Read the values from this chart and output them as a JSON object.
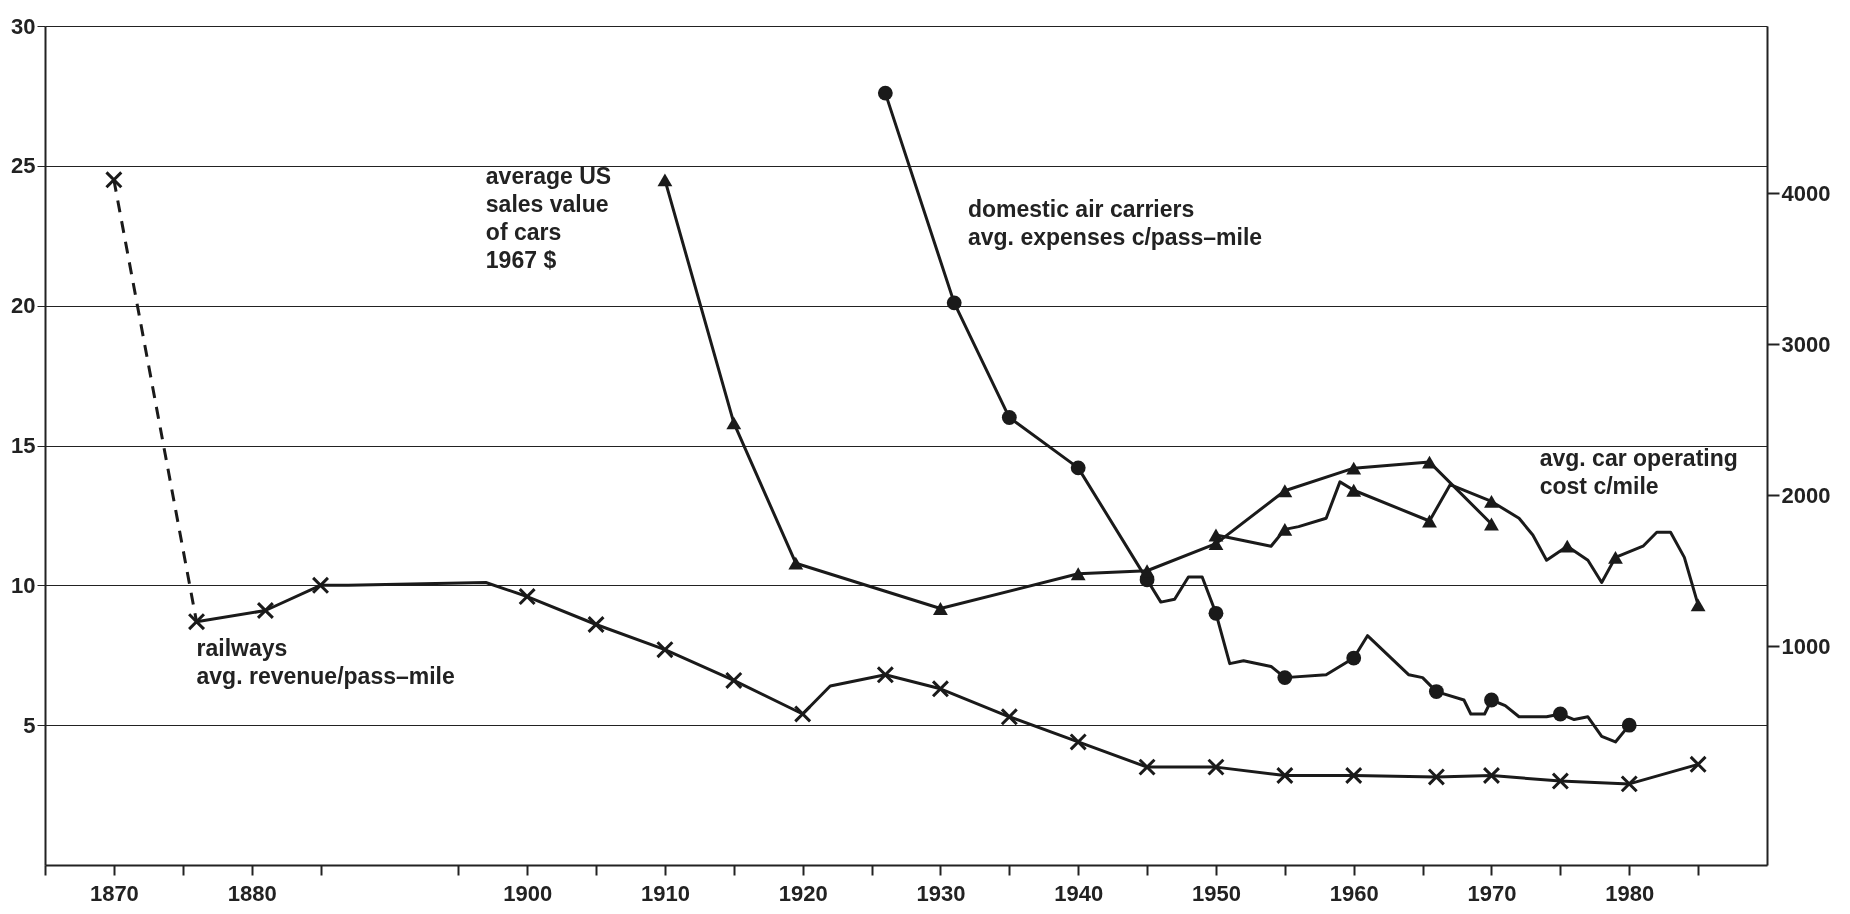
{
  "chart_data": {
    "type": "line",
    "xlim": [
      1865,
      1990
    ],
    "xticks": [
      {
        "value": 1865,
        "label": null
      },
      1870,
      {
        "value": 1875,
        "label": null
      },
      1880,
      {
        "value": 1885,
        "label": null
      },
      {
        "value": 1895,
        "label": null
      },
      1900,
      {
        "value": 1905,
        "label": null
      },
      1910,
      {
        "value": 1915,
        "label": null
      },
      1920,
      {
        "value": 1925,
        "label": null
      },
      1930,
      {
        "value": 1935,
        "label": null
      },
      1940,
      {
        "value": 1945,
        "label": null
      },
      1950,
      {
        "value": 1955,
        "label": null
      },
      1960,
      {
        "value": 1965,
        "label": null
      },
      1970,
      {
        "value": 1975,
        "label": null
      },
      1980,
      {
        "value": 1985,
        "label": null
      }
    ],
    "ylim": [
      0,
      30
    ],
    "yticks": [
      5,
      10,
      15,
      20,
      25,
      30
    ],
    "y2lim": [
      -450,
      5110
    ],
    "y2ticks": [
      1000,
      2000,
      3000,
      4000
    ],
    "grid": "y",
    "series": [
      {
        "color": "#1a1a1a",
        "line_style": "dashed",
        "marker": "none",
        "x": [
          1870,
          1876
        ],
        "values": [
          24.5,
          8.7
        ]
      },
      {
        "color": "#1a1a1a",
        "line_style": "solid",
        "marker": "none",
        "x": [
          1876,
          1881,
          1885,
          1887,
          1897,
          1900,
          1905,
          1910,
          1915,
          1920,
          1922,
          1926,
          1930,
          1935,
          1940,
          1945,
          1950,
          1955,
          1960,
          1966,
          1970,
          1975,
          1980,
          1985
        ],
        "values": [
          8.7,
          9.1,
          10.0,
          10.0,
          10.1,
          9.6,
          8.6,
          7.7,
          6.6,
          5.4,
          6.4,
          6.8,
          6.3,
          5.3,
          4.4,
          3.5,
          3.5,
          3.2,
          3.2,
          3.15,
          3.2,
          3.0,
          2.9,
          3.6
        ]
      },
      {
        "type": "scatter",
        "color": "#1a1a1a",
        "marker": "cross",
        "x": [
          1870,
          1876,
          1881,
          1885,
          1900,
          1905,
          1910,
          1915,
          1920,
          1926,
          1930,
          1935,
          1940,
          1945,
          1950,
          1955,
          1960,
          1966,
          1970,
          1975,
          1980,
          1985
        ],
        "values": [
          24.5,
          8.7,
          9.1,
          10.0,
          9.6,
          8.6,
          7.7,
          6.6,
          5.4,
          6.8,
          6.3,
          5.3,
          4.4,
          3.5,
          3.5,
          3.2,
          3.2,
          3.15,
          3.2,
          3.0,
          2.9,
          3.6
        ]
      },
      {
        "color": "#1a1a1a",
        "line_style": "solid",
        "marker": "none",
        "x": [
          1926,
          1931,
          1935,
          1940,
          1944,
          1945,
          1946,
          1947,
          1948,
          1949,
          1950,
          1951,
          1952,
          1954,
          1955,
          1958,
          1960,
          1961,
          1964,
          1965,
          1966,
          1968,
          1968.5,
          1969.5,
          1970,
          1971,
          1972,
          1974,
          1975,
          1976,
          1977,
          1978,
          1979,
          1980
        ],
        "values": [
          27.6,
          20.1,
          16.0,
          14.2,
          11.0,
          10.2,
          9.4,
          9.5,
          10.3,
          10.3,
          9.0,
          7.2,
          7.3,
          7.1,
          6.7,
          6.8,
          7.4,
          8.2,
          6.8,
          6.7,
          6.2,
          5.9,
          5.4,
          5.4,
          5.9,
          5.7,
          5.3,
          5.3,
          5.4,
          5.2,
          5.3,
          4.6,
          4.4,
          5.0
        ]
      },
      {
        "type": "scatter",
        "color": "#1a1a1a",
        "marker": "circle",
        "x": [
          1926,
          1931,
          1935,
          1940,
          1945,
          1950,
          1955,
          1960,
          1966,
          1970,
          1975,
          1980
        ],
        "values": [
          27.6,
          20.1,
          16.0,
          14.2,
          10.2,
          9.0,
          6.7,
          7.4,
          6.2,
          5.9,
          5.4,
          5.0
        ]
      },
      {
        "color": "#1a1a1a",
        "line_style": "solid",
        "marker": "triangle",
        "axis": "y2",
        "x": [
          1910,
          1915,
          1919.5,
          1930,
          1940,
          1945,
          1950,
          1955,
          1960,
          1965.5,
          1970
        ],
        "values": [
          4090,
          2480,
          1550,
          1250,
          1480,
          1500,
          1680,
          2030,
          2180,
          2220,
          1810
        ]
      },
      {
        "color": "#1a1a1a",
        "line_style": "solid",
        "marker": "none",
        "x": [
          1950,
          1951,
          1954,
          1955,
          1956,
          1958,
          1959,
          1960,
          1965.5,
          1967,
          1970,
          1972,
          1973,
          1974,
          1975.5,
          1977,
          1978,
          1979,
          1981,
          1982,
          1983,
          1984,
          1985
        ],
        "values": [
          11.8,
          11.7,
          11.4,
          12.0,
          12.1,
          12.4,
          13.7,
          13.4,
          12.3,
          13.6,
          13.0,
          12.4,
          11.8,
          10.9,
          11.4,
          10.9,
          10.1,
          11.0,
          11.4,
          11.9,
          11.9,
          11.0,
          9.3
        ]
      },
      {
        "type": "scatter",
        "color": "#1a1a1a",
        "marker": "triangle",
        "x": [
          1950,
          1955,
          1960,
          1965.5,
          1970,
          1975.5,
          1979,
          1985
        ],
        "values": [
          11.8,
          12.0,
          13.4,
          12.3,
          13.0,
          11.4,
          11.0,
          9.3
        ]
      }
    ],
    "annotations": [
      "average US\nsales value\nof cars\n1967 $",
      "domestic air carriers\navg. expenses c/pass–mile",
      "avg. car operating\ncost c/mile",
      "railways\navg. revenue/pass–mile"
    ]
  }
}
